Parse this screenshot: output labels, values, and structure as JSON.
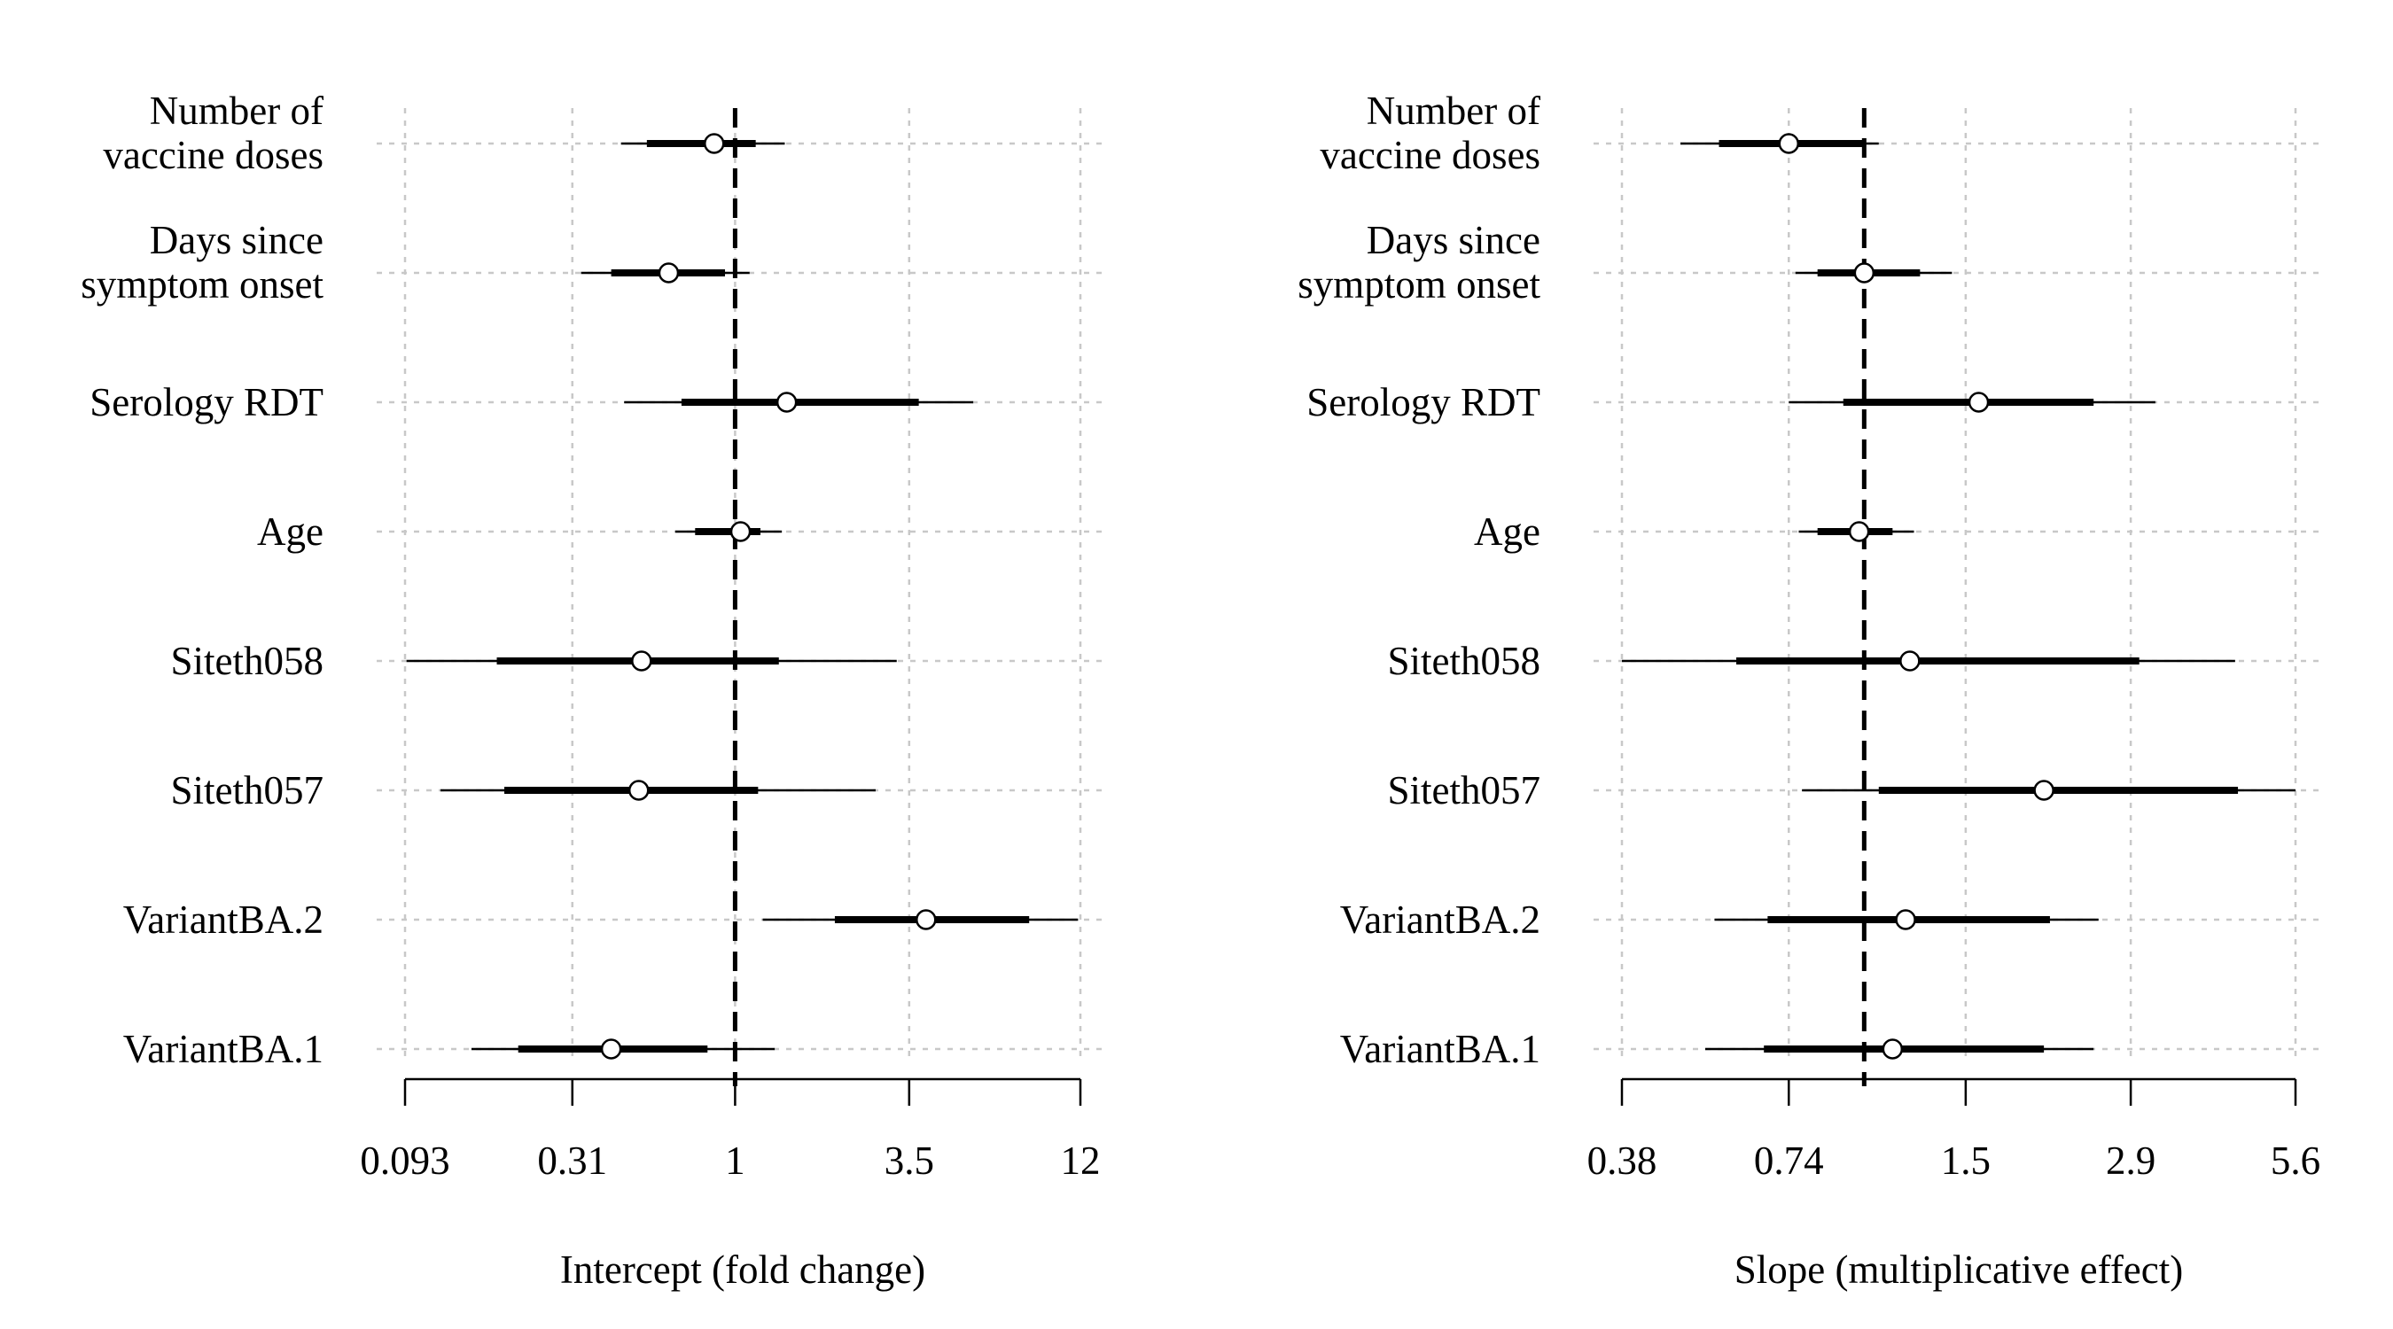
{
  "chart_data": [
    {
      "type": "forest",
      "xlabel": "Intercept (fold change)",
      "xscale": "log",
      "xlim": [
        0.093,
        12
      ],
      "reference_line": 1,
      "grid": true,
      "grid_ticks": [
        0.093,
        0.31,
        1,
        3.5,
        12
      ],
      "ticks": [
        {
          "value": 0.093,
          "label": "0.093"
        },
        {
          "value": 0.31,
          "label": "0.31"
        },
        {
          "value": 1,
          "label": "1"
        },
        {
          "value": 3.5,
          "label": "3.5"
        },
        {
          "value": 12,
          "label": "12"
        }
      ],
      "rows": [
        {
          "label": [
            "Number of",
            "vaccine doses"
          ],
          "estimate": 0.86,
          "inner": [
            0.53,
            1.16
          ],
          "outer": [
            0.44,
            1.43
          ]
        },
        {
          "label": [
            "Days since",
            "symptom onset"
          ],
          "estimate": 0.62,
          "inner": [
            0.41,
            0.93
          ],
          "outer": [
            0.33,
            1.11
          ]
        },
        {
          "label": [
            "Serology RDT"
          ],
          "estimate": 1.45,
          "inner": [
            0.68,
            3.75
          ],
          "outer": [
            0.45,
            5.55
          ]
        },
        {
          "label": [
            "Age"
          ],
          "estimate": 1.04,
          "inner": [
            0.75,
            1.2
          ],
          "outer": [
            0.65,
            1.4
          ]
        },
        {
          "label": [
            "Siteth058"
          ],
          "estimate": 0.51,
          "inner": [
            0.18,
            1.37
          ],
          "outer": [
            0.094,
            3.2
          ]
        },
        {
          "label": [
            "Siteth057"
          ],
          "estimate": 0.5,
          "inner": [
            0.19,
            1.18
          ],
          "outer": [
            0.12,
            2.75
          ]
        },
        {
          "label": [
            "VariantBA.2"
          ],
          "estimate": 3.95,
          "inner": [
            2.05,
            8.3
          ],
          "outer": [
            1.22,
            11.8
          ]
        },
        {
          "label": [
            "VariantBA.1"
          ],
          "estimate": 0.41,
          "inner": [
            0.21,
            0.82
          ],
          "outer": [
            0.15,
            1.33
          ]
        }
      ]
    },
    {
      "type": "forest",
      "xlabel": "Slope (multiplicative effect)",
      "xscale": "log",
      "xlim": [
        0.38,
        5.6
      ],
      "reference_line": 1,
      "grid": true,
      "grid_ticks": [
        0.38,
        0.74,
        1.5,
        2.9,
        5.6
      ],
      "ticks": [
        {
          "value": 0.38,
          "label": "0.38"
        },
        {
          "value": 0.74,
          "label": "0.74"
        },
        {
          "value": 1.5,
          "label": "1.5"
        },
        {
          "value": 2.9,
          "label": "2.9"
        },
        {
          "value": 5.6,
          "label": "5.6"
        }
      ],
      "rows": [
        {
          "label": [
            "Number of",
            "vaccine doses"
          ],
          "estimate": 0.74,
          "inner": [
            0.56,
            1
          ],
          "outer": [
            0.48,
            1.06
          ]
        },
        {
          "label": [
            "Days since",
            "symptom onset"
          ],
          "estimate": 1,
          "inner": [
            0.83,
            1.25
          ],
          "outer": [
            0.76,
            1.42
          ]
        },
        {
          "label": [
            "Serology RDT"
          ],
          "estimate": 1.58,
          "inner": [
            0.92,
            2.5
          ],
          "outer": [
            0.74,
            3.2
          ]
        },
        {
          "label": [
            "Age"
          ],
          "estimate": 0.98,
          "inner": [
            0.83,
            1.12
          ],
          "outer": [
            0.77,
            1.22
          ]
        },
        {
          "label": [
            "Siteth058"
          ],
          "estimate": 1.2,
          "inner": [
            0.6,
            3.0
          ],
          "outer": [
            0.38,
            4.4
          ]
        },
        {
          "label": [
            "Siteth057"
          ],
          "estimate": 2.05,
          "inner": [
            1.06,
            4.45
          ],
          "outer": [
            0.78,
            5.6
          ]
        },
        {
          "label": [
            "VariantBA.2"
          ],
          "estimate": 1.18,
          "inner": [
            0.68,
            2.1
          ],
          "outer": [
            0.55,
            2.55
          ]
        },
        {
          "label": [
            "VariantBA.1"
          ],
          "estimate": 1.12,
          "inner": [
            0.67,
            2.05
          ],
          "outer": [
            0.53,
            2.5
          ]
        }
      ]
    }
  ]
}
